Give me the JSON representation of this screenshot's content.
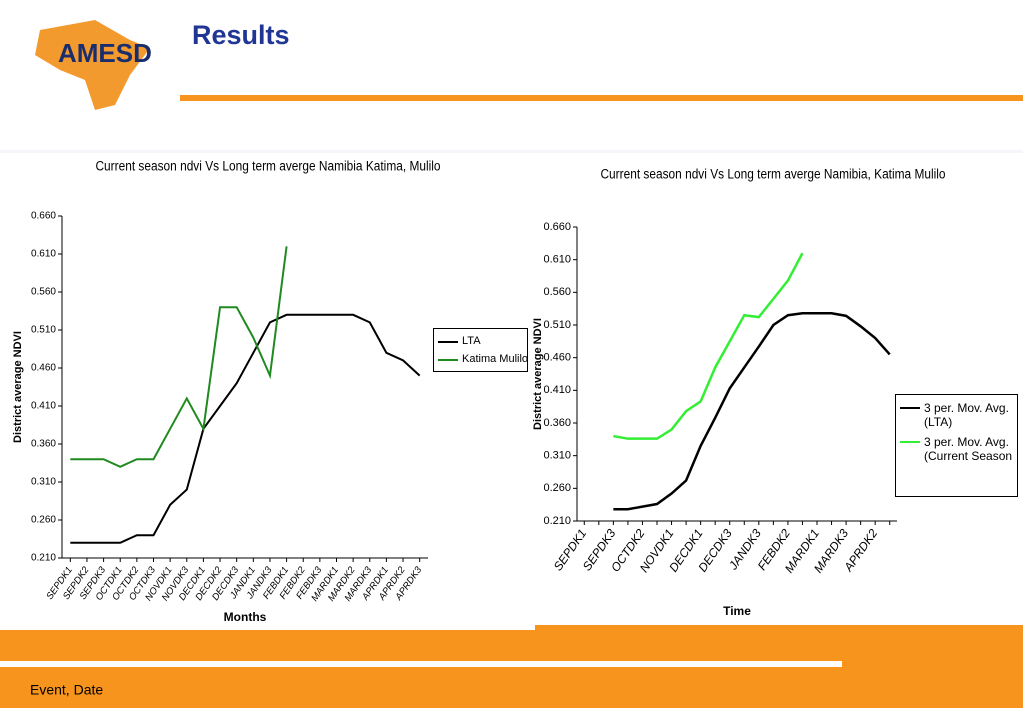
{
  "header": {
    "title": "Results",
    "logo": "AMESD"
  },
  "footer": {
    "text": "Event, Date"
  },
  "chart_data": [
    {
      "type": "line",
      "title": "Current season ndvi Vs Long term averge Namibia Katima, Mulilo",
      "x_label": "Months",
      "y_label": "District average NDVI",
      "categories": [
        "SEPDK1",
        "SEPDK2",
        "SEPDK3",
        "OCTDK1",
        "OCTDK2",
        "OCTDK3",
        "NOVDK1",
        "NOVDK3",
        "DECDK1",
        "DECDK2",
        "DECDK3",
        "JANDK1",
        "JANDK3",
        "FEBDK1",
        "FEBDK2",
        "FEBDK3",
        "MARDK1",
        "MARDK2",
        "MARDK3",
        "APRDK1",
        "APRDK2",
        "APRDK3"
      ],
      "series": [
        {
          "name": "LTA",
          "color": "#000000",
          "values": [
            0.23,
            0.23,
            0.23,
            0.23,
            0.24,
            0.24,
            0.28,
            0.3,
            0.38,
            0.41,
            0.44,
            0.48,
            0.52,
            0.53,
            0.53,
            0.53,
            0.53,
            0.53,
            0.52,
            0.48,
            0.47,
            0.45
          ]
        },
        {
          "name": "Katima Mulilo Rur",
          "color": "#1f8a1f",
          "values": [
            0.34,
            0.34,
            0.34,
            0.33,
            0.34,
            0.34,
            0.38,
            0.42,
            0.38,
            0.54,
            0.54,
            0.5,
            0.45,
            0.62,
            null,
            null,
            null,
            null,
            null,
            null,
            null,
            null
          ]
        }
      ],
      "ylim": [
        0.21,
        0.66
      ],
      "yticks": [
        {
          "value": 0.21,
          "label": "0.210"
        },
        {
          "value": 0.26,
          "label": "0.260"
        },
        {
          "value": 0.31,
          "label": "0.310"
        },
        {
          "value": 0.36,
          "label": "0.360"
        },
        {
          "value": 0.41,
          "label": "0.410"
        },
        {
          "value": 0.46,
          "label": "0.460"
        },
        {
          "value": 0.51,
          "label": "0.510"
        },
        {
          "value": 0.56,
          "label": "0.560"
        },
        {
          "value": 0.61,
          "label": "0.610"
        },
        {
          "value": 0.66,
          "label": "0.660"
        }
      ],
      "legend": "right"
    },
    {
      "type": "line",
      "title": "Current season ndvi Vs Long term averge Namibia, Katima Mulilo",
      "x_label": "Time",
      "y_label": "District average NDVI",
      "categories": [
        "SEPDK1",
        null,
        "SEPDK3",
        null,
        "OCTDK2",
        null,
        "NOVDK1",
        null,
        "DECDK1",
        null,
        "DECDK3",
        null,
        "JANDK3",
        null,
        "FEBDK2",
        null,
        "MARDK1",
        null,
        "MARDK3",
        null,
        "APRDK2",
        null
      ],
      "series": [
        {
          "name": "3 per. Mov. Avg. (LTA)",
          "color": "#000000",
          "values": [
            null,
            null,
            0.228,
            0.228,
            0.232,
            0.236,
            0.252,
            0.272,
            0.325,
            0.368,
            0.413,
            0.445,
            0.477,
            0.51,
            0.525,
            0.528,
            0.528,
            0.528,
            0.524,
            0.508,
            0.49,
            0.465
          ]
        },
        {
          "name": "3 per. Mov. Avg. (Current Season",
          "color": "#33ee33",
          "values": [
            null,
            null,
            0.34,
            0.336,
            0.336,
            0.336,
            0.35,
            0.378,
            0.393,
            0.445,
            0.485,
            0.525,
            0.522,
            0.55,
            0.578,
            0.62,
            null,
            null,
            null,
            null,
            null,
            null
          ]
        }
      ],
      "ylim": [
        0.21,
        0.66
      ],
      "yticks": [
        {
          "value": 0.21,
          "label": "0.210"
        },
        {
          "value": 0.26,
          "label": "0.260"
        },
        {
          "value": 0.31,
          "label": "0.310"
        },
        {
          "value": 0.36,
          "label": "0.360"
        },
        {
          "value": 0.41,
          "label": "0.410"
        },
        {
          "value": 0.46,
          "label": "0.460"
        },
        {
          "value": 0.51,
          "label": "0.510"
        },
        {
          "value": 0.56,
          "label": "0.560"
        },
        {
          "value": 0.61,
          "label": "0.610"
        },
        {
          "value": 0.66,
          "label": "0.660"
        }
      ],
      "legend": "right"
    }
  ]
}
